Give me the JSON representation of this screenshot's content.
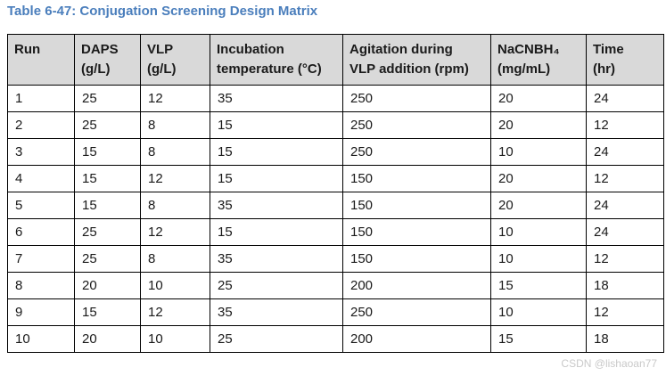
{
  "caption": "Table 6-47: Conjugation Screening Design Matrix",
  "watermark": "CSDN @lishaoan77",
  "colors": {
    "caption_blue": "#4A7EBC",
    "header_bg": "#D9D9D9",
    "border": "#000000"
  },
  "table": {
    "headers": [
      {
        "line1": "Run",
        "line2": ""
      },
      {
        "line1": "DAPS",
        "line2": "(g/L)"
      },
      {
        "line1": "VLP",
        "line2": "(g/L)"
      },
      {
        "line1": "Incubation",
        "line2": "temperature (°C)"
      },
      {
        "line1": "Agitation during",
        "line2": "VLP addition (rpm)"
      },
      {
        "line1": "NaCNBH₄",
        "line2": "(mg/mL)"
      },
      {
        "line1": "Time",
        "line2": "(hr)"
      }
    ],
    "rows": [
      [
        "1",
        "25",
        "12",
        "35",
        "250",
        "20",
        "24"
      ],
      [
        "2",
        "25",
        "8",
        "15",
        "250",
        "20",
        "12"
      ],
      [
        "3",
        "15",
        "8",
        "15",
        "250",
        "10",
        "24"
      ],
      [
        "4",
        "15",
        "12",
        "15",
        "150",
        "20",
        "12"
      ],
      [
        "5",
        "15",
        "8",
        "35",
        "150",
        "20",
        "24"
      ],
      [
        "6",
        "25",
        "12",
        "15",
        "150",
        "10",
        "24"
      ],
      [
        "7",
        "25",
        "8",
        "35",
        "150",
        "10",
        "12"
      ],
      [
        "8",
        "20",
        "10",
        "25",
        "200",
        "15",
        "18"
      ],
      [
        "9",
        "15",
        "12",
        "35",
        "250",
        "10",
        "12"
      ],
      [
        "10",
        "20",
        "10",
        "25",
        "200",
        "15",
        "18"
      ]
    ]
  }
}
